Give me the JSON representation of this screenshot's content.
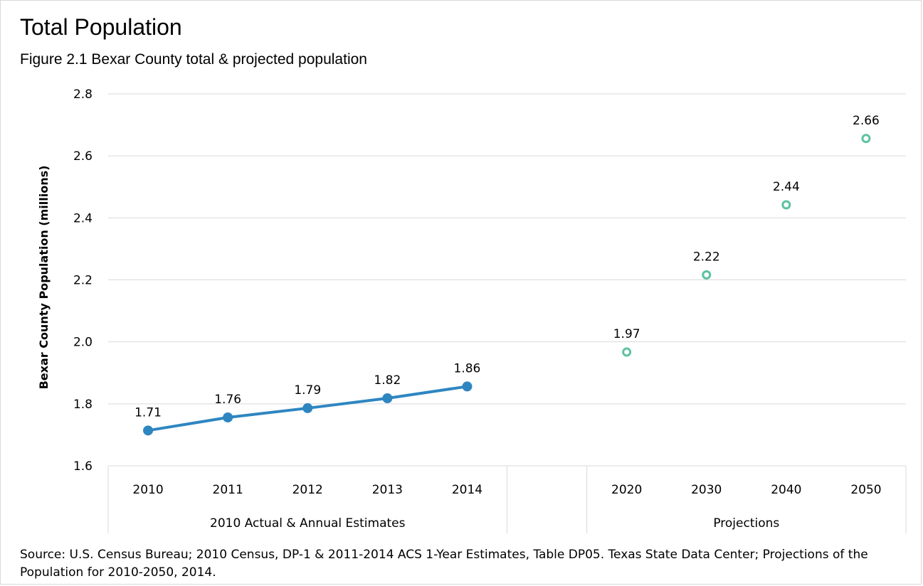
{
  "title": "Total Population",
  "subtitle": "Figure 2.1 Bexar County total & projected population",
  "source_text": "Source: U.S. Census Bureau; 2010 Census, DP-1 & 2011-2014 ACS 1-Year Estimates, Table DP05. Texas State Data Center; Projections of the Population for 2010-2050, 2014.",
  "chart_data": {
    "type": "line",
    "ylabel": "Bexar County Population (millions)",
    "xlabel": "",
    "ylim": [
      1.6,
      2.8
    ],
    "yticks": [
      1.6,
      1.8,
      2.0,
      2.2,
      2.4,
      2.6,
      2.8
    ],
    "grid": true,
    "categories": [
      "2010",
      "2011",
      "2012",
      "2013",
      "2014",
      "",
      "2020",
      "2030",
      "2040",
      "2050"
    ],
    "groups": [
      {
        "label": "2010 Actual & Annual Estimates"
      },
      {
        "label": ""
      },
      {
        "label": "Projections"
      }
    ],
    "series": [
      {
        "style": "line-filled-markers",
        "color": "#2e86c1",
        "x": [
          "2010",
          "2011",
          "2012",
          "2013",
          "2014"
        ],
        "values": [
          1.714,
          1.756,
          1.786,
          1.818,
          1.856
        ],
        "labels": [
          "1.71",
          "1.76",
          "1.79",
          "1.82",
          "1.86"
        ]
      },
      {
        "style": "hollow-markers",
        "color": "#5cc2a0",
        "x": [
          "2020",
          "2030",
          "2040",
          "2050"
        ],
        "values": [
          1.967,
          2.216,
          2.442,
          2.656
        ],
        "labels": [
          "1.97",
          "2.22",
          "2.44",
          "2.66"
        ]
      }
    ]
  }
}
